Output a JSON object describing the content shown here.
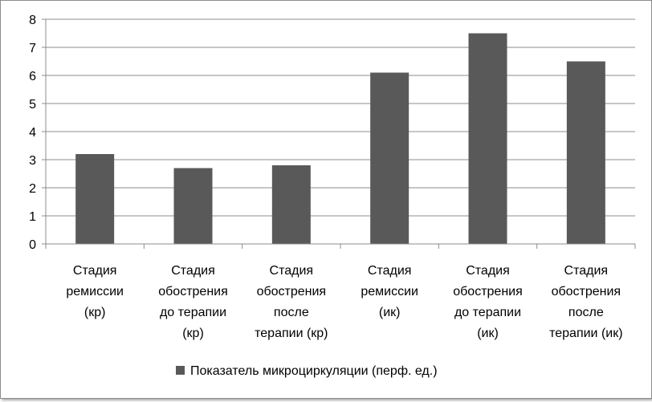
{
  "chart_data": {
    "type": "bar",
    "categories": [
      [
        "Стадия",
        "ремиссии",
        "(кр)"
      ],
      [
        "Стадия",
        "обострения",
        "до терапии",
        "(кр)"
      ],
      [
        "Стадия",
        "обострения",
        "после",
        "терапии (кр)"
      ],
      [
        "Стадия",
        "ремиссии",
        "(ик)"
      ],
      [
        "Стадия",
        "обострения",
        "до терапии",
        "(ик)"
      ],
      [
        "Стадия",
        "обострения",
        "после",
        "терапии (ик)"
      ]
    ],
    "series": [
      {
        "name": "Показатель микроциркуляции (перф. ед.)",
        "values": [
          3.2,
          2.7,
          2.8,
          6.1,
          7.5,
          6.5
        ],
        "color": "#595959"
      }
    ],
    "yticks": [
      "0",
      "1",
      "2",
      "3",
      "4",
      "5",
      "6",
      "7",
      "8"
    ],
    "ylim": [
      0,
      8
    ],
    "grid": true,
    "legend_position": "bottom",
    "colors": {
      "gridline": "#8c8c8c",
      "axis": "#8c8c8c"
    }
  }
}
